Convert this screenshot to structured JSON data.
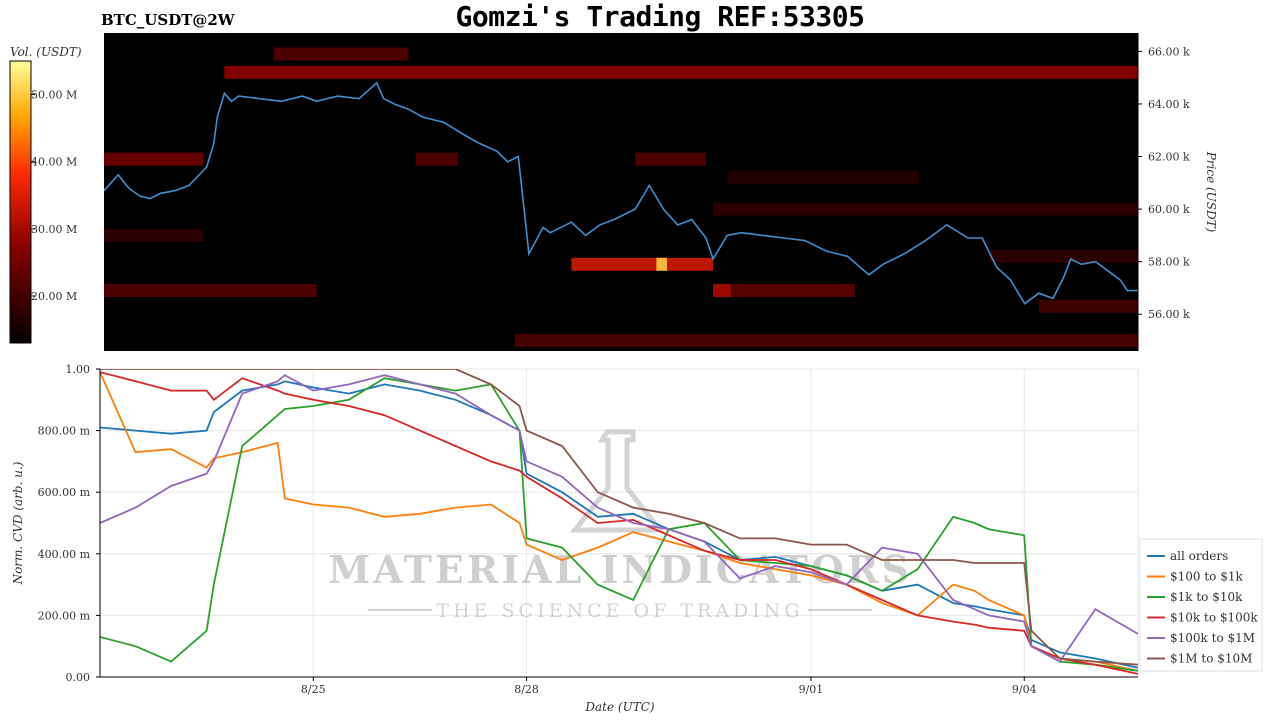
{
  "header": {
    "title": "Gomzi's Trading REF:53305",
    "symbol": "BTC_USDT@2W"
  },
  "watermark": {
    "line1": "MATERIAL INDICATORS",
    "line2": "THE SCIENCE OF TRADING"
  },
  "chart_data": [
    {
      "type": "heatmap",
      "title": "",
      "colorbar_label": "Vol. (USDT)",
      "colorbar_ticks": [
        "50.00 M",
        "40.00 M",
        "30.00 M",
        "20.00 M"
      ],
      "colorbar_range": [
        13,
        55
      ],
      "ylabel": "Price (USDT)",
      "y_ticks": [
        "66.00 k",
        "64.00 k",
        "62.00 k",
        "60.00 k",
        "58.00 k",
        "56.00 k"
      ],
      "ylim": [
        54.6,
        66.7
      ],
      "xlim": [
        0,
        14.6
      ],
      "price_series_color": "#3f8fcf",
      "price": {
        "x": [
          0,
          0.2,
          0.35,
          0.5,
          0.65,
          0.8,
          1.0,
          1.2,
          1.45,
          1.55,
          1.6,
          1.7,
          1.8,
          1.9,
          2.2,
          2.5,
          2.8,
          3.0,
          3.3,
          3.6,
          3.85,
          3.95,
          4.1,
          4.3,
          4.5,
          4.8,
          5.1,
          5.3,
          5.55,
          5.7,
          5.85,
          5.9,
          6.0,
          6.2,
          6.3,
          6.6,
          6.8,
          7.0,
          7.2,
          7.5,
          7.7,
          7.9,
          8.1,
          8.3,
          8.5,
          8.6,
          8.8,
          9.0,
          9.3,
          9.6,
          9.9,
          10.2,
          10.5,
          10.8,
          11.0,
          11.3,
          11.6,
          11.9,
          12.2,
          12.4,
          12.6,
          12.8,
          13.0,
          13.2,
          13.4,
          13.55,
          13.65,
          13.8,
          14.0,
          14.2,
          14.35,
          14.45,
          14.6
        ],
        "y": [
          60.7,
          61.3,
          60.8,
          60.5,
          60.4,
          60.6,
          60.7,
          60.9,
          61.6,
          62.5,
          63.5,
          64.4,
          64.1,
          64.3,
          64.2,
          64.1,
          64.3,
          64.1,
          64.3,
          64.2,
          64.8,
          64.2,
          64.0,
          63.8,
          63.5,
          63.3,
          62.8,
          62.5,
          62.2,
          61.8,
          62.0,
          60.8,
          58.3,
          59.3,
          59.1,
          59.5,
          59.0,
          59.4,
          59.6,
          60.0,
          60.9,
          60.0,
          59.4,
          59.6,
          58.9,
          58.1,
          59.0,
          59.1,
          59.0,
          58.9,
          58.8,
          58.4,
          58.2,
          57.5,
          57.9,
          58.3,
          58.8,
          59.4,
          58.9,
          58.9,
          57.8,
          57.3,
          56.4,
          56.8,
          56.6,
          57.4,
          58.1,
          57.9,
          58.0,
          57.6,
          57.3,
          56.9,
          56.9
        ]
      },
      "volume_bands": [
        {
          "price": 65.2,
          "x0": 1.7,
          "x1": 14.6,
          "vol": 28
        },
        {
          "price": 65.9,
          "x0": 2.4,
          "x1": 4.3,
          "vol": 22
        },
        {
          "price": 61.9,
          "x0": 0,
          "x1": 1.4,
          "vol": 25
        },
        {
          "price": 61.9,
          "x0": 4.4,
          "x1": 5.0,
          "vol": 22
        },
        {
          "price": 61.9,
          "x0": 7.5,
          "x1": 8.5,
          "vol": 22
        },
        {
          "price": 57.9,
          "x0": 6.6,
          "x1": 8.6,
          "vol": 34
        },
        {
          "price": 57.9,
          "x0": 7.8,
          "x1": 7.95,
          "vol": 50
        },
        {
          "price": 56.9,
          "x0": 0,
          "x1": 3.0,
          "vol": 22
        },
        {
          "price": 56.9,
          "x0": 8.6,
          "x1": 10.6,
          "vol": 23
        },
        {
          "price": 56.9,
          "x0": 8.6,
          "x1": 8.85,
          "vol": 30
        },
        {
          "price": 55.0,
          "x0": 5.8,
          "x1": 14.6,
          "vol": 21
        },
        {
          "price": 60.0,
          "x0": 8.6,
          "x1": 14.6,
          "vol": 18
        },
        {
          "price": 59.0,
          "x0": 0,
          "x1": 1.4,
          "vol": 18
        },
        {
          "price": 58.2,
          "x0": 12.5,
          "x1": 14.6,
          "vol": 18
        },
        {
          "price": 56.3,
          "x0": 13.2,
          "x1": 14.6,
          "vol": 20
        },
        {
          "price": 61.2,
          "x0": 8.8,
          "x1": 11.5,
          "vol": 17
        }
      ]
    },
    {
      "type": "line",
      "title": "",
      "xlabel": "Date (UTC)",
      "ylabel": "Norm. CVD (arb. u.)",
      "y_ticks": [
        "1.00",
        "800.00 m",
        "600.00 m",
        "400.00 m",
        "200.00 m",
        "0.00"
      ],
      "ylim": [
        0,
        1
      ],
      "xlim": [
        0,
        14.6
      ],
      "x_ticks": [
        {
          "label": "8/25",
          "x": 3
        },
        {
          "label": "8/28",
          "x": 6
        },
        {
          "label": "9/01",
          "x": 10
        },
        {
          "label": "9/04",
          "x": 13
        }
      ],
      "legend_position": "right",
      "x": [
        0,
        0.5,
        1.0,
        1.5,
        1.6,
        2.0,
        2.5,
        2.6,
        3.0,
        3.5,
        4.0,
        4.5,
        5.0,
        5.5,
        5.9,
        6.0,
        6.5,
        7.0,
        7.5,
        8.0,
        8.5,
        9.0,
        9.5,
        10.0,
        10.5,
        11.0,
        11.5,
        12.0,
        12.3,
        12.5,
        13.0,
        13.1,
        13.5,
        14.0,
        14.6
      ],
      "series": [
        {
          "name": "all orders",
          "color": "#1f77b4",
          "values": [
            0.81,
            0.8,
            0.79,
            0.8,
            0.86,
            0.93,
            0.95,
            0.96,
            0.94,
            0.92,
            0.95,
            0.93,
            0.9,
            0.85,
            0.8,
            0.66,
            0.6,
            0.52,
            0.53,
            0.48,
            0.44,
            0.38,
            0.39,
            0.36,
            0.33,
            0.28,
            0.3,
            0.24,
            0.23,
            0.22,
            0.2,
            0.12,
            0.08,
            0.06,
            0.03
          ]
        },
        {
          "name": "$100 to $1k",
          "color": "#ff7f0e",
          "values": [
            0.99,
            0.73,
            0.74,
            0.68,
            0.71,
            0.73,
            0.76,
            0.58,
            0.56,
            0.55,
            0.52,
            0.53,
            0.55,
            0.56,
            0.5,
            0.43,
            0.38,
            0.42,
            0.47,
            0.44,
            0.41,
            0.37,
            0.35,
            0.33,
            0.3,
            0.24,
            0.2,
            0.3,
            0.28,
            0.25,
            0.2,
            0.1,
            0.06,
            0.05,
            0.02
          ]
        },
        {
          "name": "$1k to $10k",
          "color": "#2ca02c",
          "values": [
            0.13,
            0.1,
            0.05,
            0.15,
            0.3,
            0.75,
            0.85,
            0.87,
            0.88,
            0.9,
            0.97,
            0.95,
            0.93,
            0.95,
            0.8,
            0.45,
            0.42,
            0.3,
            0.25,
            0.48,
            0.5,
            0.38,
            0.37,
            0.36,
            0.33,
            0.28,
            0.35,
            0.52,
            0.5,
            0.48,
            0.46,
            0.1,
            0.05,
            0.04,
            0.02
          ]
        },
        {
          "name": "$10k to $100k",
          "color": "#d62728",
          "values": [
            0.99,
            0.96,
            0.93,
            0.93,
            0.9,
            0.97,
            0.93,
            0.92,
            0.9,
            0.88,
            0.85,
            0.8,
            0.75,
            0.7,
            0.67,
            0.65,
            0.58,
            0.5,
            0.51,
            0.46,
            0.41,
            0.38,
            0.38,
            0.35,
            0.3,
            0.25,
            0.2,
            0.18,
            0.17,
            0.16,
            0.15,
            0.1,
            0.06,
            0.04,
            0.01
          ]
        },
        {
          "name": "$100k to $1M",
          "color": "#9467bd",
          "values": [
            0.5,
            0.55,
            0.62,
            0.66,
            0.7,
            0.92,
            0.96,
            0.98,
            0.93,
            0.95,
            0.98,
            0.95,
            0.92,
            0.85,
            0.8,
            0.7,
            0.65,
            0.55,
            0.5,
            0.48,
            0.44,
            0.32,
            0.36,
            0.34,
            0.3,
            0.42,
            0.4,
            0.25,
            0.22,
            0.2,
            0.18,
            0.1,
            0.05,
            0.22,
            0.14
          ]
        },
        {
          "name": "$1M to $10M",
          "color": "#8c564b",
          "values": [
            1.0,
            1.0,
            1.0,
            1.0,
            1.0,
            1.0,
            1.0,
            1.0,
            1.0,
            1.0,
            1.0,
            1.0,
            1.0,
            0.95,
            0.88,
            0.8,
            0.75,
            0.6,
            0.55,
            0.53,
            0.5,
            0.45,
            0.45,
            0.43,
            0.43,
            0.38,
            0.38,
            0.38,
            0.37,
            0.37,
            0.37,
            0.15,
            0.06,
            0.05,
            0.04
          ]
        }
      ]
    }
  ]
}
